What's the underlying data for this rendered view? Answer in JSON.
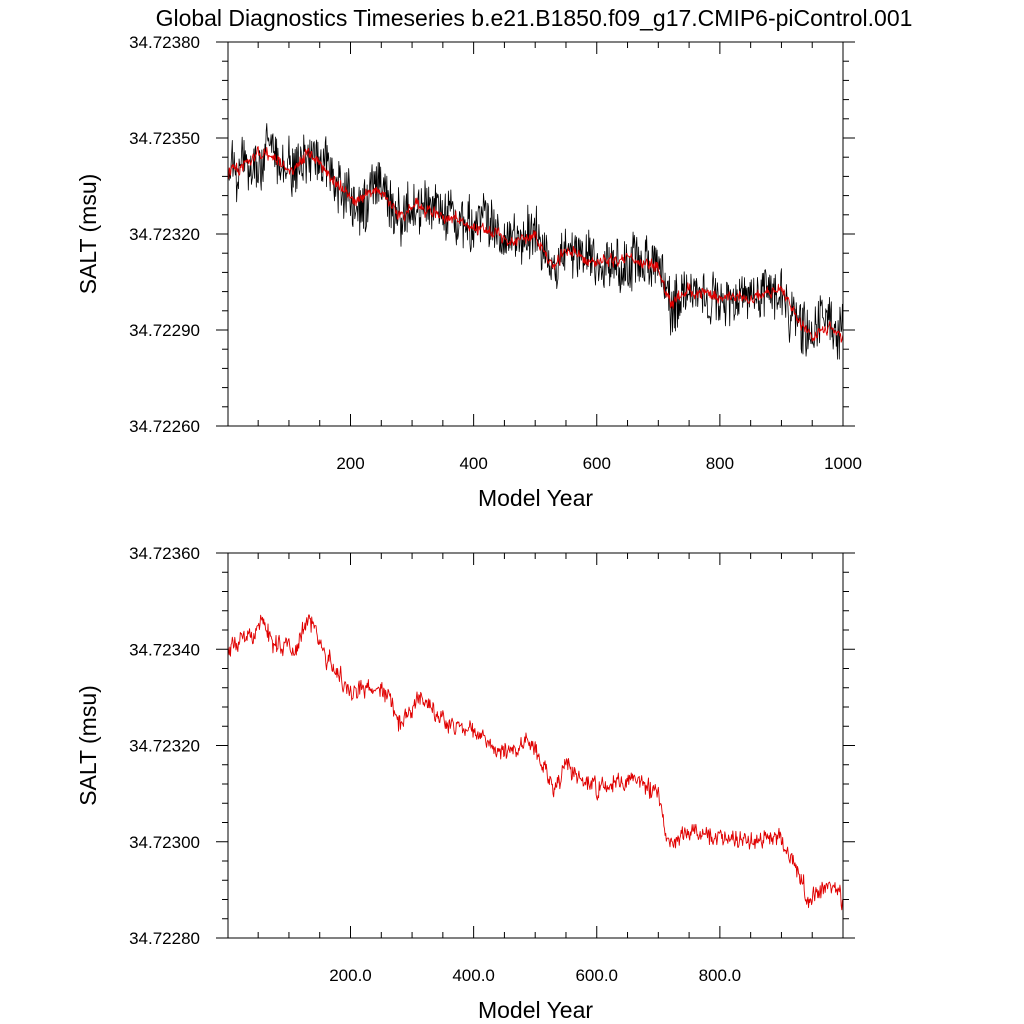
{
  "title": "Global Diagnostics Timeseries b.e21.B1850.f09_g17.CMIP6-piControl.001",
  "colors": {
    "annual": "#000000",
    "smoothed": "#e00000",
    "background": "#ffffff"
  },
  "chart_data": [
    {
      "type": "line",
      "name": "top-panel",
      "xlabel": "Model Year",
      "ylabel": "SALT (msu)",
      "xlim": [
        1,
        1000
      ],
      "ylim": [
        34.7226,
        34.7238
      ],
      "xticks": [
        200,
        400,
        600,
        800,
        1000
      ],
      "xtick_labels": [
        "200",
        "400",
        "600",
        "800",
        "1000"
      ],
      "yticks": [
        34.7226,
        34.7229,
        34.7232,
        34.7235,
        34.7238
      ],
      "ytick_labels": [
        "34.72260",
        "34.72290",
        "34.72320",
        "34.72350",
        "34.72380"
      ],
      "series": [
        {
          "name": "annual",
          "color": "#000000",
          "kind": "noisy",
          "noise_amp": 9.5e-05,
          "x": [
            1,
            20,
            50,
            80,
            110,
            130,
            160,
            200,
            250,
            280,
            310,
            350,
            400,
            450,
            500,
            530,
            550,
            600,
            650,
            700,
            720,
            750,
            800,
            850,
            900,
            930,
            950,
            980,
            1000
          ],
          "y": [
            34.72339,
            34.72341,
            34.72345,
            34.72342,
            34.7234,
            34.72346,
            34.7234,
            34.7233,
            34.72333,
            34.72325,
            34.7233,
            34.72325,
            34.72323,
            34.72318,
            34.7232,
            34.7231,
            34.72315,
            34.72311,
            34.72313,
            34.7231,
            34.72298,
            34.72302,
            34.723,
            34.723,
            34.72301,
            34.72292,
            34.72288,
            34.72292,
            34.72288
          ]
        },
        {
          "name": "smoothed",
          "color": "#e00000",
          "kind": "noisy",
          "noise_amp": 4.5e-05,
          "x": [
            1,
            20,
            50,
            80,
            110,
            130,
            160,
            200,
            250,
            280,
            310,
            350,
            400,
            450,
            500,
            530,
            550,
            600,
            650,
            700,
            720,
            750,
            800,
            850,
            900,
            930,
            950,
            980,
            1000
          ],
          "y": [
            34.72339,
            34.72341,
            34.72345,
            34.72342,
            34.7234,
            34.72346,
            34.7234,
            34.7233,
            34.72333,
            34.72325,
            34.7233,
            34.72325,
            34.72323,
            34.72318,
            34.7232,
            34.7231,
            34.72315,
            34.72311,
            34.72313,
            34.7231,
            34.72298,
            34.72302,
            34.723,
            34.723,
            34.72301,
            34.72292,
            34.72288,
            34.72292,
            34.72288
          ]
        }
      ]
    },
    {
      "type": "line",
      "name": "bottom-panel",
      "xlabel": "Model Year",
      "ylabel": "SALT (msu)",
      "xlim": [
        1,
        1000
      ],
      "ylim": [
        34.7228,
        34.7236
      ],
      "xticks": [
        200,
        400,
        600,
        800
      ],
      "xtick_labels": [
        "200.0",
        "400.0",
        "600.0",
        "800.0"
      ],
      "yticks": [
        34.7228,
        34.723,
        34.7232,
        34.7234,
        34.7236
      ],
      "ytick_labels": [
        "34.72280",
        "34.72300",
        "34.72320",
        "34.72340",
        "34.72360"
      ],
      "series": [
        {
          "name": "smoothed",
          "color": "#e00000",
          "kind": "noisy",
          "noise_amp": 4.5e-05,
          "x": [
            1,
            20,
            50,
            80,
            110,
            130,
            160,
            200,
            250,
            280,
            310,
            350,
            400,
            450,
            500,
            530,
            550,
            600,
            650,
            700,
            720,
            750,
            800,
            850,
            900,
            930,
            950,
            980,
            1000
          ],
          "y": [
            34.72339,
            34.72341,
            34.72345,
            34.72342,
            34.7234,
            34.72346,
            34.7234,
            34.7233,
            34.72333,
            34.72325,
            34.7233,
            34.72325,
            34.72323,
            34.72318,
            34.7232,
            34.7231,
            34.72315,
            34.72311,
            34.72313,
            34.7231,
            34.72298,
            34.72302,
            34.723,
            34.723,
            34.72301,
            34.72292,
            34.72288,
            34.72292,
            34.72288
          ]
        }
      ]
    }
  ]
}
